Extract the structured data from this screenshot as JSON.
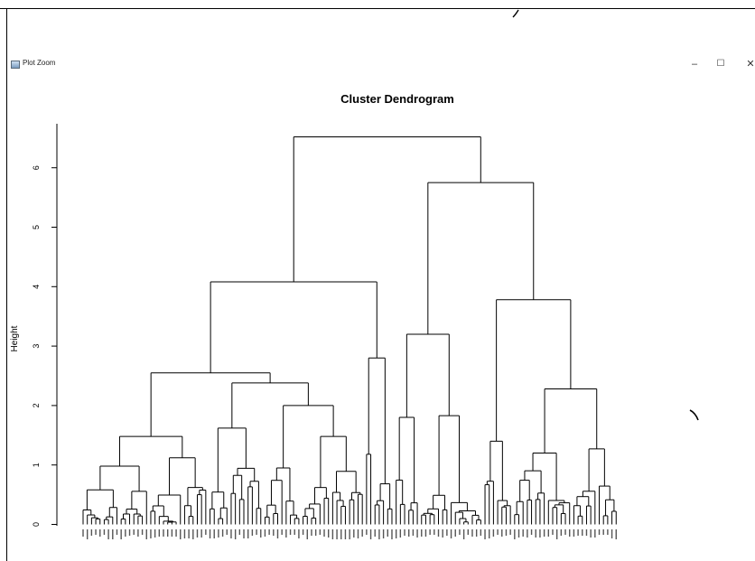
{
  "window": {
    "title": "Plot Zoom",
    "controls": {
      "minimize": "–",
      "maximize": "☐",
      "close": "✕"
    }
  },
  "colors": {
    "line": "#000000",
    "background": "#ffffff"
  },
  "chart_data": {
    "type": "dendrogram",
    "title": "Cluster Dendrogram",
    "ylabel": "Height",
    "yticks": [
      0,
      1,
      2,
      3,
      4,
      5,
      6
    ],
    "ylim": [
      0,
      6.8
    ],
    "n_leaves": 150,
    "merges": [
      {
        "id": "root",
        "height": 6.52,
        "children": [
          "L",
          "R"
        ]
      },
      {
        "id": "L",
        "height": 4.08,
        "children": [
          "L1",
          "L2"
        ]
      },
      {
        "id": "L1",
        "height": 2.55,
        "children": [
          "L1a",
          "L1b"
        ]
      },
      {
        "id": "L1a",
        "height": 1.48,
        "children": [
          "L1a1",
          "L1a2"
        ]
      },
      {
        "id": "L1a1",
        "height": 0.98,
        "children": [
          9,
          7
        ]
      },
      {
        "id": "L1a2",
        "height": 1.12,
        "children": [
          8,
          6
        ]
      },
      {
        "id": "L1b",
        "height": 2.38,
        "children": [
          "L1b1",
          "L1b2"
        ]
      },
      {
        "id": "L1b1",
        "height": 1.62,
        "children": [
          5,
          8
        ]
      },
      {
        "id": "L1b2",
        "height": 2.0,
        "children": [
          "L1b2a",
          "L1b2b"
        ]
      },
      {
        "id": "L1b2a",
        "height": 0.95,
        "children": [
          5,
          4
        ]
      },
      {
        "id": "L1b2b",
        "height": 1.48,
        "children": [
          7,
          8
        ]
      },
      {
        "id": "L2",
        "height": 2.8,
        "children": [
          "L2a",
          5
        ]
      },
      {
        "id": "L2a",
        "height": 1.18,
        "children": [
          1,
          1
        ]
      },
      {
        "id": "R",
        "height": 5.75,
        "children": [
          "R1",
          "R2"
        ]
      },
      {
        "id": "R1",
        "height": 3.2,
        "children": [
          "R1a",
          "R1b"
        ]
      },
      {
        "id": "R1a",
        "height": 1.8,
        "children": [
          3,
          3
        ]
      },
      {
        "id": "R1b",
        "height": 1.83,
        "children": [
          7,
          8
        ]
      },
      {
        "id": "R2",
        "height": 3.78,
        "children": [
          "R2a",
          "R2b"
        ]
      },
      {
        "id": "R2a",
        "height": 1.4,
        "children": [
          3,
          4
        ]
      },
      {
        "id": "R2b",
        "height": 2.28,
        "children": [
          "R2b1",
          "R2b2"
        ]
      },
      {
        "id": "R2b1",
        "height": 1.2,
        "children": [
          8,
          6
        ]
      },
      {
        "id": "R2b2",
        "height": 1.27,
        "children": [
          6,
          5
        ]
      }
    ]
  }
}
